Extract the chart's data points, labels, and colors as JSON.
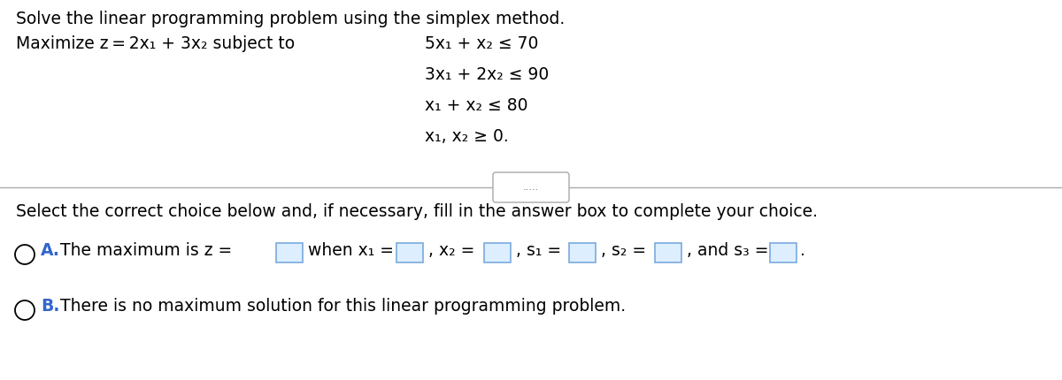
{
  "white": "#ffffff",
  "text_color": "#000000",
  "blue_color": "#3366cc",
  "box_edge": "#7aaadd",
  "box_face": "#ddeeff",
  "line_color": "#aaaaaa",
  "dots_color": "#666666",
  "title": "Solve the linear programming problem using the simplex method.",
  "maximize": "Maximize z = 2x",
  "subject": " subject to",
  "dots": ".....",
  "select": "Select the correct choice below and, if necessary, fill in the answer box to complete your choice.",
  "choice_a_label": "A.",
  "choice_a_pre": "The maximum is z =",
  "choice_a_mid": "when x",
  "choice_b_label": "B.",
  "choice_b": "There is no maximum solution for this linear programming problem.",
  "fontsize": 13.5,
  "small_fontsize": 10.5
}
